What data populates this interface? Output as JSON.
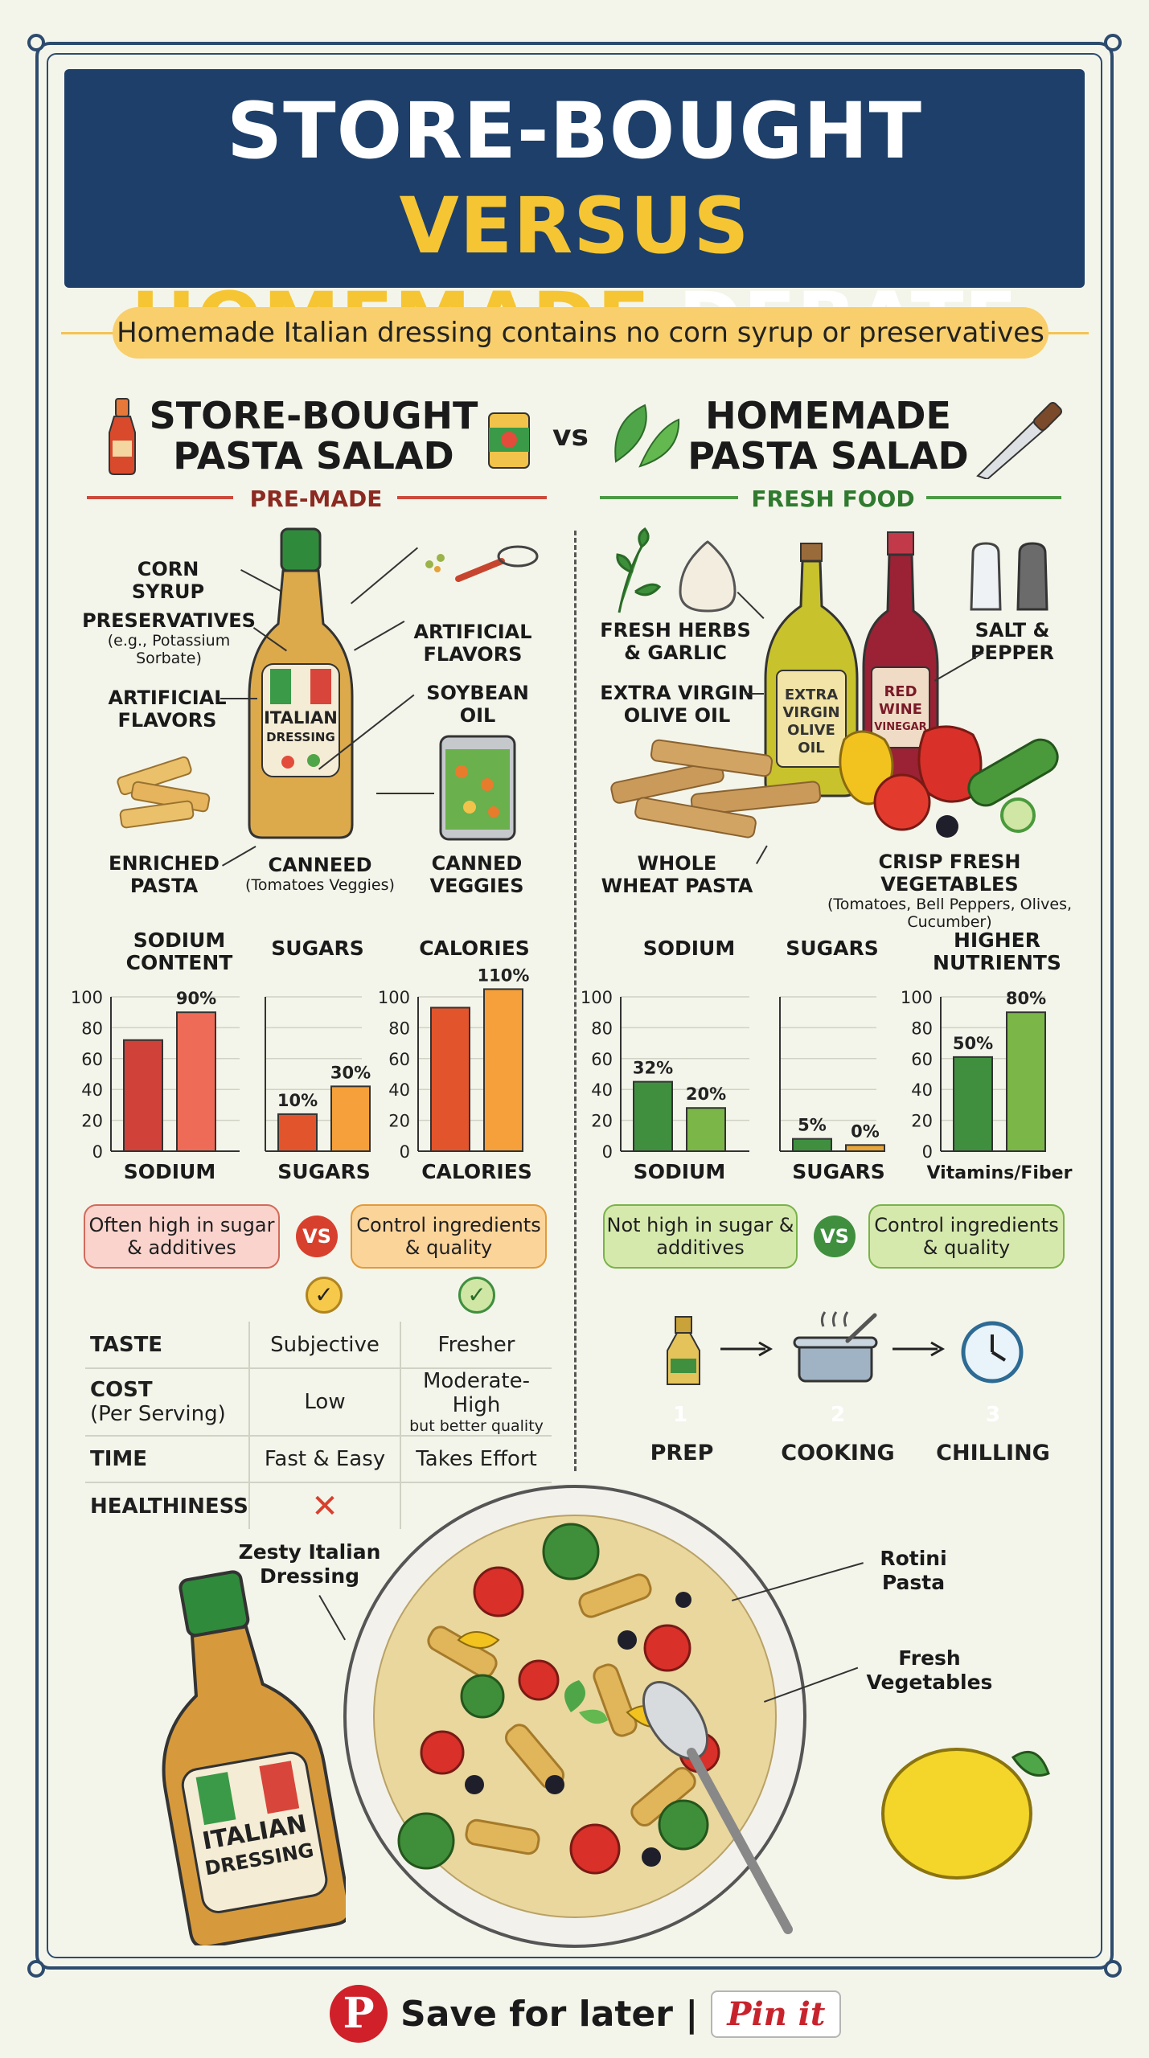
{
  "title": {
    "line1_white": "STORE-BOUGHT",
    "line1_yellow": "VERSUS",
    "line2_yellow": "HOMEMADE",
    "line2_white": "DEBATE"
  },
  "subtitle": "Homemade Italian dressing contains no corn syrup or preservatives",
  "left_header": {
    "line1": "STORE-BOUGHT",
    "line2": "PASTA SALAD"
  },
  "vs": "vs",
  "right_header": {
    "line1": "HOMEMADE",
    "line2": "PASTA SALAD"
  },
  "left_section": "PRE-MADE",
  "right_section": "FRESH FOOD",
  "left_labels": {
    "corn_syrup": "CORN SYRUP",
    "preservatives": "PRESERVATIVES",
    "preservatives_note": "(e.g., Potassium Sorbate)",
    "artificial_flavors_left": "ARTIFICIAL FLAVORS",
    "artificial_flavors_right": "ARTIFICIAL FLAVORS",
    "soybean_oil": "SOYBEAN OIL",
    "enriched_pasta": "ENRICHED PASTA",
    "canneed": "CANNEED",
    "canneed_note": "(Tomatoes Veggies)",
    "canned_veggies": "CANNED VEGGIES",
    "bottle_label_1": "ITALIAN",
    "bottle_label_2": "DRESSING"
  },
  "right_labels": {
    "herbs": "FRESH HERBS & GARLIC",
    "olive_oil": "EXTRA VIRGIN OLIVE OIL",
    "salt_pepper": "SALT & PEPPER",
    "whole_wheat": "WHOLE WHEAT PASTA",
    "crisp_veg": "CRISP FRESH VEGETABLES",
    "crisp_veg_note": "(Tomatoes, Bell Peppers, Olives, Cucumber)",
    "oil_bottle": "EXTRA VIRGIN OLIVE OIL",
    "vinegar_bottle": "RED WINE VINEGAR"
  },
  "chart_data": [
    {
      "type": "bar",
      "title": "SODIUM CONTENT",
      "xlabel": "SODIUM",
      "ylim": [
        0,
        100
      ],
      "yticks": [
        0,
        20,
        40,
        60,
        80,
        100
      ],
      "series": [
        {
          "values": [
            72,
            90
          ]
        }
      ],
      "data_labels": [
        "",
        "90%"
      ],
      "colors": [
        "#d0413a",
        "#ee6c57"
      ]
    },
    {
      "type": "bar",
      "title": "SUGARS",
      "xlabel": "SUGARS",
      "ylim": [
        0,
        100
      ],
      "yticks": [],
      "series": [
        {
          "values": [
            24,
            42
          ]
        }
      ],
      "data_labels": [
        "10%",
        "30%"
      ],
      "colors": [
        "#e2552c",
        "#f5a03a"
      ]
    },
    {
      "type": "bar",
      "title": "CALORIES",
      "xlabel": "CALORIES",
      "ylim": [
        0,
        100
      ],
      "yticks": [
        0,
        20,
        40,
        60,
        80,
        100
      ],
      "series": [
        {
          "values": [
            93,
            105
          ]
        }
      ],
      "data_labels": [
        "",
        "110%"
      ],
      "colors": [
        "#e2552c",
        "#f5a03a"
      ]
    },
    {
      "type": "bar",
      "title": "SODIUM",
      "xlabel": "SODIUM",
      "ylim": [
        0,
        100
      ],
      "yticks": [
        0,
        20,
        40,
        60,
        80,
        100
      ],
      "series": [
        {
          "values": [
            45,
            28
          ]
        }
      ],
      "data_labels": [
        "32%",
        "20%"
      ],
      "colors": [
        "#3f8f3f",
        "#7ab648"
      ]
    },
    {
      "type": "bar",
      "title": "SUGARS",
      "xlabel": "SUGARS",
      "ylim": [
        0,
        100
      ],
      "yticks": [],
      "series": [
        {
          "values": [
            8,
            4
          ]
        }
      ],
      "data_labels": [
        "5%",
        "0%"
      ],
      "colors": [
        "#3f8f3f",
        "#e8a53a"
      ]
    },
    {
      "type": "bar",
      "title": "HIGHER NUTRIENTS",
      "xlabel": "Vitamins/Fiber",
      "ylim": [
        0,
        100
      ],
      "yticks": [
        0,
        20,
        40,
        60,
        80,
        100
      ],
      "series": [
        {
          "values": [
            61,
            90
          ]
        }
      ],
      "data_labels": [
        "50%",
        "80%"
      ],
      "colors": [
        "#3f8f3f",
        "#7ab648"
      ]
    }
  ],
  "callouts": {
    "left_a": "Often high in sugar & additives",
    "left_b": "Control ingredients & quality",
    "right_a": "Not high in sugar & additives",
    "right_b": "Control ingredients & quality",
    "vs": "VS",
    "check": "✓"
  },
  "table": [
    {
      "key": "TASTE",
      "store": "Subjective",
      "home": "Fresher"
    },
    {
      "key": "COST",
      "key_note": "(Per Serving)",
      "store": "Low",
      "home": "Moderate-High",
      "home_note": "but better quality"
    },
    {
      "key": "TIME",
      "store": "Fast & Easy",
      "home": "Takes Effort"
    },
    {
      "key": "HEALTHINESS",
      "store": "✕",
      "home": ""
    }
  ],
  "steps": [
    {
      "num": "1",
      "label": "PREP",
      "color": "#f2b233"
    },
    {
      "num": "2",
      "label": "COOKING",
      "color": "#ef8b2c"
    },
    {
      "num": "3",
      "label": "CHILLING",
      "color": "#5bb3d8"
    }
  ],
  "bowl_labels": {
    "dressing": "Zesty Italian Dressing",
    "rotini": "Rotini Pasta",
    "veg": "Fresh Vegetables"
  },
  "footer": {
    "save": "Save for later |",
    "pin": "Pin it"
  }
}
